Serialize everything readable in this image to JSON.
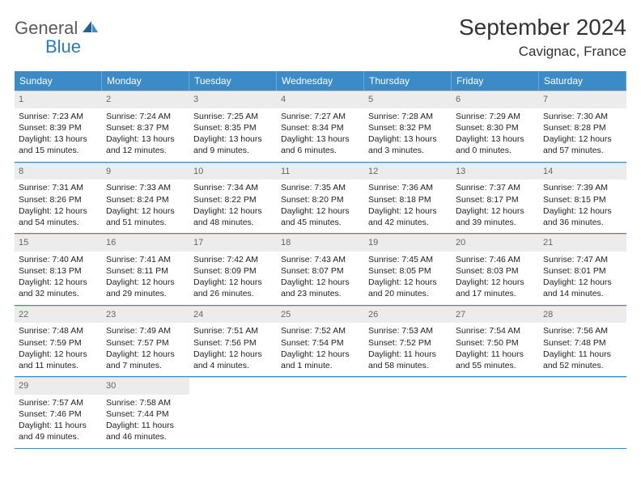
{
  "logo": {
    "line1": "General",
    "line2": "Blue"
  },
  "title": "September 2024",
  "location": "Cavignac, France",
  "colors": {
    "header_bg": "#3b8bc9",
    "header_text": "#ffffff",
    "daynum_bg": "#ececec",
    "daynum_text": "#666666",
    "row_divider": "#3b8bc9",
    "cell_border": "#c9c9c9",
    "logo_gray": "#5a5a5a",
    "logo_blue": "#2a7ac0"
  },
  "dow": [
    "Sunday",
    "Monday",
    "Tuesday",
    "Wednesday",
    "Thursday",
    "Friday",
    "Saturday"
  ],
  "days": [
    {
      "n": "1",
      "sr": "Sunrise: 7:23 AM",
      "ss": "Sunset: 8:39 PM",
      "d1": "Daylight: 13 hours",
      "d2": "and 15 minutes."
    },
    {
      "n": "2",
      "sr": "Sunrise: 7:24 AM",
      "ss": "Sunset: 8:37 PM",
      "d1": "Daylight: 13 hours",
      "d2": "and 12 minutes."
    },
    {
      "n": "3",
      "sr": "Sunrise: 7:25 AM",
      "ss": "Sunset: 8:35 PM",
      "d1": "Daylight: 13 hours",
      "d2": "and 9 minutes."
    },
    {
      "n": "4",
      "sr": "Sunrise: 7:27 AM",
      "ss": "Sunset: 8:34 PM",
      "d1": "Daylight: 13 hours",
      "d2": "and 6 minutes."
    },
    {
      "n": "5",
      "sr": "Sunrise: 7:28 AM",
      "ss": "Sunset: 8:32 PM",
      "d1": "Daylight: 13 hours",
      "d2": "and 3 minutes."
    },
    {
      "n": "6",
      "sr": "Sunrise: 7:29 AM",
      "ss": "Sunset: 8:30 PM",
      "d1": "Daylight: 13 hours",
      "d2": "and 0 minutes."
    },
    {
      "n": "7",
      "sr": "Sunrise: 7:30 AM",
      "ss": "Sunset: 8:28 PM",
      "d1": "Daylight: 12 hours",
      "d2": "and 57 minutes."
    },
    {
      "n": "8",
      "sr": "Sunrise: 7:31 AM",
      "ss": "Sunset: 8:26 PM",
      "d1": "Daylight: 12 hours",
      "d2": "and 54 minutes."
    },
    {
      "n": "9",
      "sr": "Sunrise: 7:33 AM",
      "ss": "Sunset: 8:24 PM",
      "d1": "Daylight: 12 hours",
      "d2": "and 51 minutes."
    },
    {
      "n": "10",
      "sr": "Sunrise: 7:34 AM",
      "ss": "Sunset: 8:22 PM",
      "d1": "Daylight: 12 hours",
      "d2": "and 48 minutes."
    },
    {
      "n": "11",
      "sr": "Sunrise: 7:35 AM",
      "ss": "Sunset: 8:20 PM",
      "d1": "Daylight: 12 hours",
      "d2": "and 45 minutes."
    },
    {
      "n": "12",
      "sr": "Sunrise: 7:36 AM",
      "ss": "Sunset: 8:18 PM",
      "d1": "Daylight: 12 hours",
      "d2": "and 42 minutes."
    },
    {
      "n": "13",
      "sr": "Sunrise: 7:37 AM",
      "ss": "Sunset: 8:17 PM",
      "d1": "Daylight: 12 hours",
      "d2": "and 39 minutes."
    },
    {
      "n": "14",
      "sr": "Sunrise: 7:39 AM",
      "ss": "Sunset: 8:15 PM",
      "d1": "Daylight: 12 hours",
      "d2": "and 36 minutes."
    },
    {
      "n": "15",
      "sr": "Sunrise: 7:40 AM",
      "ss": "Sunset: 8:13 PM",
      "d1": "Daylight: 12 hours",
      "d2": "and 32 minutes."
    },
    {
      "n": "16",
      "sr": "Sunrise: 7:41 AM",
      "ss": "Sunset: 8:11 PM",
      "d1": "Daylight: 12 hours",
      "d2": "and 29 minutes."
    },
    {
      "n": "17",
      "sr": "Sunrise: 7:42 AM",
      "ss": "Sunset: 8:09 PM",
      "d1": "Daylight: 12 hours",
      "d2": "and 26 minutes."
    },
    {
      "n": "18",
      "sr": "Sunrise: 7:43 AM",
      "ss": "Sunset: 8:07 PM",
      "d1": "Daylight: 12 hours",
      "d2": "and 23 minutes."
    },
    {
      "n": "19",
      "sr": "Sunrise: 7:45 AM",
      "ss": "Sunset: 8:05 PM",
      "d1": "Daylight: 12 hours",
      "d2": "and 20 minutes."
    },
    {
      "n": "20",
      "sr": "Sunrise: 7:46 AM",
      "ss": "Sunset: 8:03 PM",
      "d1": "Daylight: 12 hours",
      "d2": "and 17 minutes."
    },
    {
      "n": "21",
      "sr": "Sunrise: 7:47 AM",
      "ss": "Sunset: 8:01 PM",
      "d1": "Daylight: 12 hours",
      "d2": "and 14 minutes."
    },
    {
      "n": "22",
      "sr": "Sunrise: 7:48 AM",
      "ss": "Sunset: 7:59 PM",
      "d1": "Daylight: 12 hours",
      "d2": "and 11 minutes."
    },
    {
      "n": "23",
      "sr": "Sunrise: 7:49 AM",
      "ss": "Sunset: 7:57 PM",
      "d1": "Daylight: 12 hours",
      "d2": "and 7 minutes."
    },
    {
      "n": "24",
      "sr": "Sunrise: 7:51 AM",
      "ss": "Sunset: 7:56 PM",
      "d1": "Daylight: 12 hours",
      "d2": "and 4 minutes."
    },
    {
      "n": "25",
      "sr": "Sunrise: 7:52 AM",
      "ss": "Sunset: 7:54 PM",
      "d1": "Daylight: 12 hours",
      "d2": "and 1 minute."
    },
    {
      "n": "26",
      "sr": "Sunrise: 7:53 AM",
      "ss": "Sunset: 7:52 PM",
      "d1": "Daylight: 11 hours",
      "d2": "and 58 minutes."
    },
    {
      "n": "27",
      "sr": "Sunrise: 7:54 AM",
      "ss": "Sunset: 7:50 PM",
      "d1": "Daylight: 11 hours",
      "d2": "and 55 minutes."
    },
    {
      "n": "28",
      "sr": "Sunrise: 7:56 AM",
      "ss": "Sunset: 7:48 PM",
      "d1": "Daylight: 11 hours",
      "d2": "and 52 minutes."
    },
    {
      "n": "29",
      "sr": "Sunrise: 7:57 AM",
      "ss": "Sunset: 7:46 PM",
      "d1": "Daylight: 11 hours",
      "d2": "and 49 minutes."
    },
    {
      "n": "30",
      "sr": "Sunrise: 7:58 AM",
      "ss": "Sunset: 7:44 PM",
      "d1": "Daylight: 11 hours",
      "d2": "and 46 minutes."
    }
  ]
}
